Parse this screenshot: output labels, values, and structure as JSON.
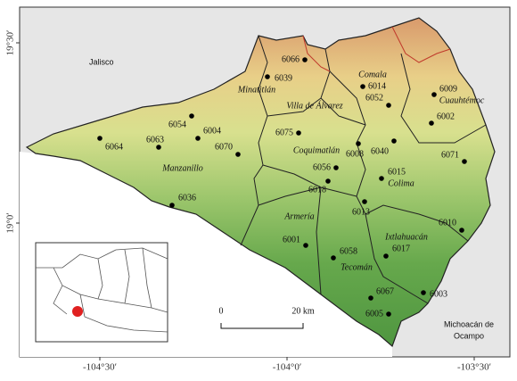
{
  "axes": {
    "lat_labels": [
      "19°30′",
      "19°0′"
    ],
    "lon_labels": [
      "-104°30′",
      "-104°0′",
      "-103°30′"
    ]
  },
  "states": {
    "jalisco": "Jalisco",
    "michoacan": [
      "Michoacán de",
      "Ocampo"
    ]
  },
  "municipalities": [
    "Minatitlán",
    "Comala",
    "Cuauhtémoc",
    "Villa de Álvarez",
    "Coquimatlán",
    "Manzanillo",
    "Colima",
    "Armería",
    "Ixtlahuacán",
    "Tecomán"
  ],
  "stations": [
    "6066",
    "6039",
    "6014",
    "6052",
    "6009",
    "6002",
    "6054",
    "6004",
    "6063",
    "6064",
    "6070",
    "6075",
    "6008",
    "6040",
    "6071",
    "6056",
    "6015",
    "6018",
    "6036",
    "6013",
    "6010",
    "6001",
    "6058",
    "6017",
    "6067",
    "6003",
    "6005"
  ],
  "scale_bar": {
    "start": "0",
    "end": "20 km"
  }
}
